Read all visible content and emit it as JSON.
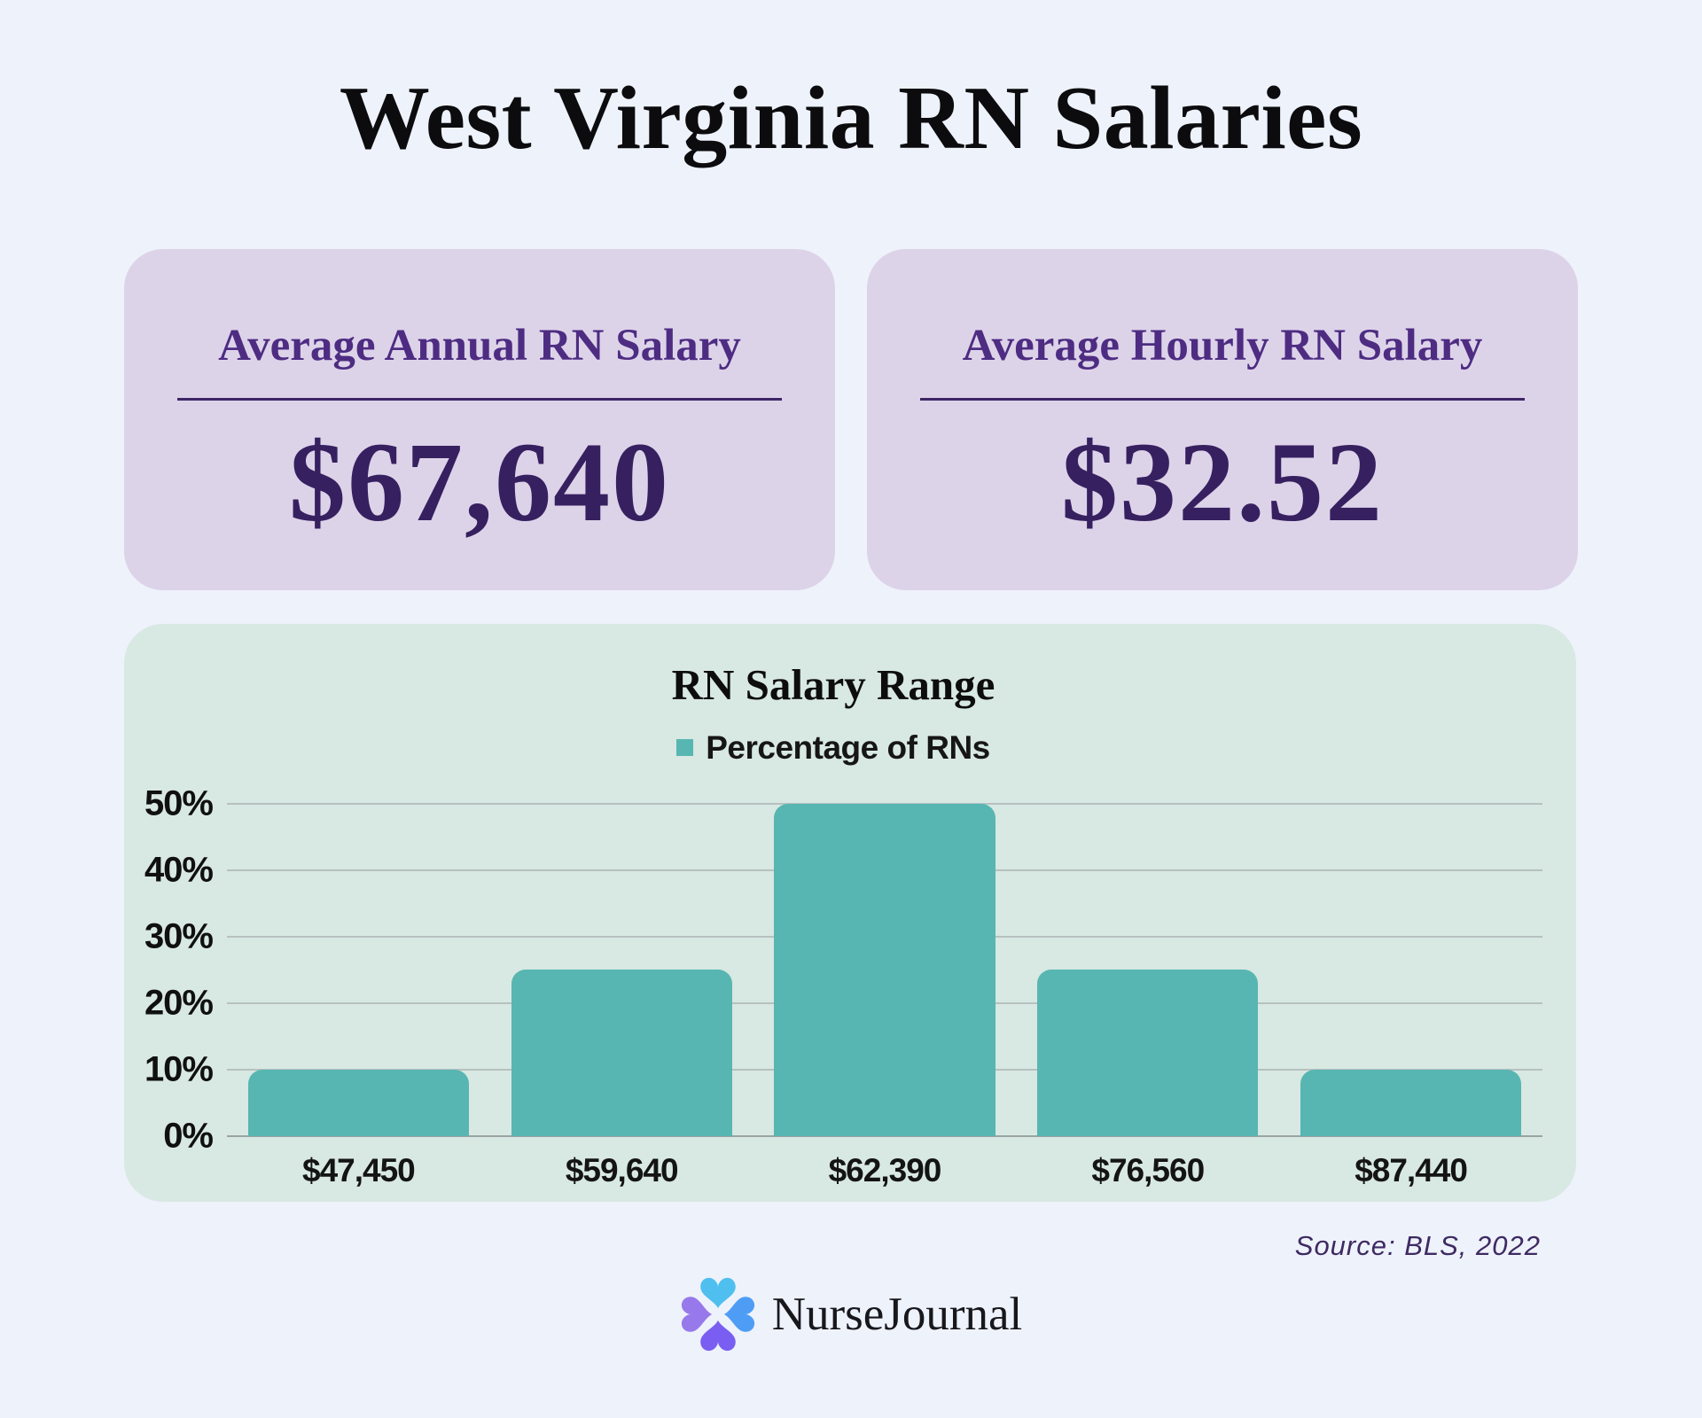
{
  "title": "West Virginia RN Salaries",
  "cards": [
    {
      "label": "Average Annual RN Salary",
      "value": "$67,640"
    },
    {
      "label": "Average Hourly RN Salary",
      "value": "$32.52"
    }
  ],
  "chart_data": {
    "type": "bar",
    "title": "RN Salary Range",
    "legend": [
      "Percentage of RNs"
    ],
    "legend_position": "top",
    "categories": [
      "$47,450",
      "$59,640",
      "$62,390",
      "$76,560",
      "$87,440"
    ],
    "values": [
      10,
      25,
      50,
      25,
      10
    ],
    "xlabel": "",
    "ylabel": "",
    "ylim": [
      0,
      50
    ],
    "yticks": [
      {
        "value": 0,
        "label": "0%"
      },
      {
        "value": 10,
        "label": "10%"
      },
      {
        "value": 20,
        "label": "20%"
      },
      {
        "value": 30,
        "label": "30%"
      },
      {
        "value": 40,
        "label": "40%"
      },
      {
        "value": 50,
        "label": "50%"
      }
    ],
    "grid": true
  },
  "source": "Source: BLS, 2022",
  "logo_text": "NurseJournal",
  "logo_icon": "x-petals-icon",
  "colors": {
    "page_bg": "#eef2fb",
    "card_bg": "#ddd3e9",
    "card_title": "#4d2c82",
    "card_value": "#372060",
    "underline": "#3d2566",
    "panel_bg": "#d8e8e2",
    "bar_teal": "#57b6b1",
    "grid_line": "#b7c1c1",
    "base_line": "#9aa4a4",
    "source_text": "#3e2a62",
    "logo_sky": "#4fbfef",
    "logo_blue": "#4e9df5",
    "logo_violet": "#7a5ef2",
    "logo_lavender": "#9779eb"
  }
}
